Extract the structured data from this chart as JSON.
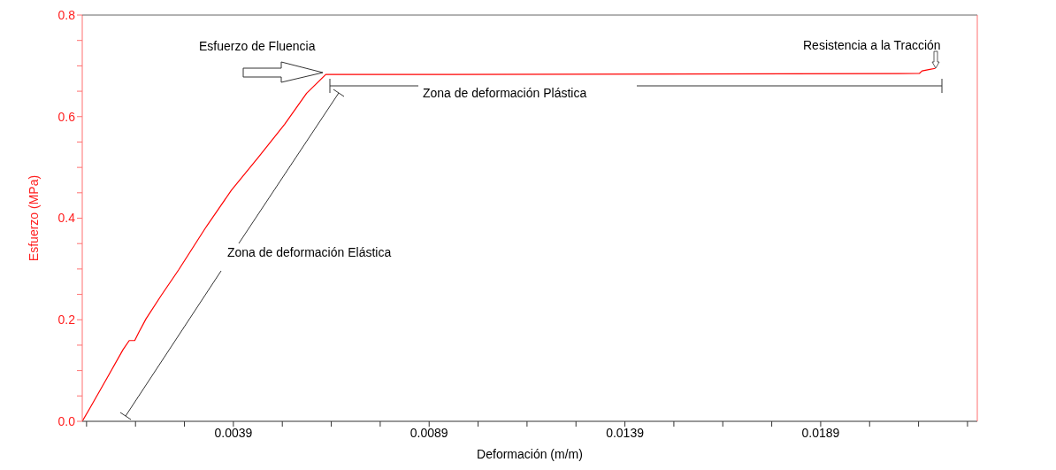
{
  "chart_data": {
    "type": "line",
    "xlabel": "Deformación (m/m)",
    "ylabel": "Esfuerzo (MPa)",
    "xlim": [
      4e-05,
      0.0229
    ],
    "xticks": [
      {
        "value": 0.00015,
        "label": null
      },
      {
        "value": 0.0014,
        "label": null
      },
      {
        "value": 0.00265,
        "label": null
      },
      0.0039,
      {
        "value": 0.00515,
        "label": null
      },
      {
        "value": 0.0064,
        "label": null
      },
      {
        "value": 0.00765,
        "label": null
      },
      0.0089,
      {
        "value": 0.01015,
        "label": null
      },
      {
        "value": 0.0114,
        "label": null
      },
      {
        "value": 0.01265,
        "label": null
      },
      0.0139,
      {
        "value": 0.01515,
        "label": null
      },
      {
        "value": 0.0164,
        "label": null
      },
      {
        "value": 0.01765,
        "label": null
      },
      0.0189,
      {
        "value": 0.02015,
        "label": null
      },
      {
        "value": 0.0214,
        "label": null
      },
      {
        "value": 0.02265,
        "label": null
      }
    ],
    "ylim": [
      0,
      0.8
    ],
    "yticks": [
      {
        "value": 0,
        "label": "0.0"
      },
      {
        "value": 0.05,
        "label": null
      },
      {
        "value": 0.1,
        "label": null
      },
      {
        "value": 0.15,
        "label": null
      },
      {
        "value": 0.2,
        "label": "0.2"
      },
      {
        "value": 0.25,
        "label": null
      },
      {
        "value": 0.3,
        "label": null
      },
      {
        "value": 0.35,
        "label": null
      },
      {
        "value": 0.4,
        "label": "0.4"
      },
      {
        "value": 0.45,
        "label": null
      },
      {
        "value": 0.5,
        "label": null
      },
      {
        "value": 0.55,
        "label": null
      },
      {
        "value": 0.6,
        "label": "0.6"
      },
      {
        "value": 0.65,
        "label": null
      },
      {
        "value": 0.7,
        "label": null
      },
      {
        "value": 0.75,
        "label": null
      },
      {
        "value": 0.8,
        "label": "0.8"
      }
    ],
    "grid": false,
    "marker": "none",
    "line_style": "solid",
    "series": [
      {
        "color": "#ff0000",
        "x": [
          4e-05,
          0.00025,
          0.0007,
          0.00108,
          0.00124,
          0.00138,
          0.00149,
          0.00167,
          0.00205,
          0.0025,
          0.00318,
          0.00385,
          0.00453,
          0.00521,
          0.00577,
          0.00626,
          0.00904,
          0.02142,
          0.02149,
          0.02169,
          0.02183
        ],
        "values": [
          0,
          0.028,
          0.089,
          0.141,
          0.159,
          0.159,
          0.176,
          0.202,
          0.247,
          0.298,
          0.38,
          0.455,
          0.519,
          0.585,
          0.646,
          0.683,
          0.683,
          0.685,
          0.69,
          0.693,
          0.695
        ]
      }
    ],
    "annotations": [
      "Esfuerzo de Fluencia",
      "Resistencia a la Tracción",
      "Zona de deformación Plástica",
      "Zona de deformación Elástica"
    ]
  }
}
